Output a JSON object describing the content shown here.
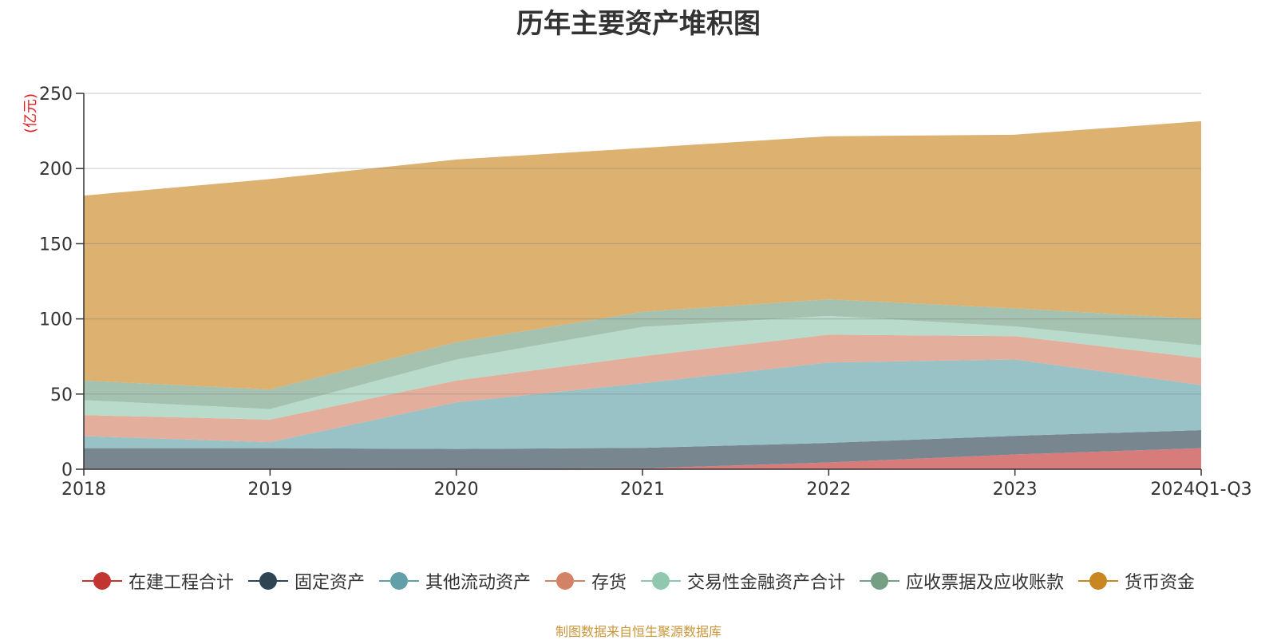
{
  "chart_data": {
    "type": "area",
    "stacked": true,
    "title": "历年主要资产堆积图",
    "ylabel": "(亿元)",
    "xlabel": "",
    "categories": [
      "2018",
      "2019",
      "2020",
      "2021",
      "2022",
      "2023",
      "2024Q1-Q3"
    ],
    "ylim": [
      0,
      250
    ],
    "yticks": [
      0,
      50,
      100,
      150,
      200,
      250
    ],
    "grid": true,
    "legend_position": "bottom",
    "series": [
      {
        "name": "在建工程合计",
        "color": "#c23531",
        "values": [
          0.3,
          0.3,
          0.5,
          0.6,
          4.5,
          9.8,
          14.0
        ]
      },
      {
        "name": "固定资产",
        "color": "#2f4554",
        "values": [
          13.7,
          13.7,
          13.0,
          13.6,
          13.0,
          12.4,
          12.0
        ]
      },
      {
        "name": "其他流动资产",
        "color": "#61a0a8",
        "values": [
          8.0,
          4.0,
          31.0,
          43.0,
          53.5,
          50.8,
          30.0
        ]
      },
      {
        "name": "存货",
        "color": "#d48265",
        "values": [
          14.0,
          15.0,
          14.5,
          18.0,
          18.5,
          15.5,
          18.0
        ]
      },
      {
        "name": "交易性金融资产合计",
        "color": "#91c7ae",
        "values": [
          10.0,
          7.0,
          14.0,
          19.5,
          12.5,
          6.5,
          8.5
        ]
      },
      {
        "name": "应收票据及应收账款",
        "color": "#749f83",
        "values": [
          13.0,
          13.0,
          11.5,
          10.0,
          11.0,
          12.0,
          17.5
        ]
      },
      {
        "name": "货币资金",
        "color": "#ca8622",
        "values": [
          123.0,
          140.0,
          121.5,
          109.0,
          108.5,
          115.5,
          131.5
        ]
      }
    ]
  },
  "legend_items": [
    {
      "label": "在建工程合计",
      "color": "#c23531"
    },
    {
      "label": "固定资产",
      "color": "#2f4554"
    },
    {
      "label": "其他流动资产",
      "color": "#61a0a8"
    },
    {
      "label": "存货",
      "color": "#d48265"
    },
    {
      "label": "交易性金融资产合计",
      "color": "#91c7ae"
    },
    {
      "label": "应收票据及应收账款",
      "color": "#749f83"
    },
    {
      "label": "货币资金",
      "color": "#ca8622"
    }
  ],
  "source_note": "制图数据来自恒生聚源数据库"
}
